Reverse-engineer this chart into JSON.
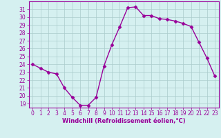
{
  "x": [
    0,
    1,
    2,
    3,
    4,
    5,
    6,
    7,
    8,
    9,
    10,
    11,
    12,
    13,
    14,
    15,
    16,
    17,
    18,
    19,
    20,
    21,
    22,
    23
  ],
  "y": [
    24.0,
    23.5,
    23.0,
    22.8,
    21.0,
    19.8,
    18.8,
    18.8,
    19.8,
    23.8,
    26.5,
    28.8,
    31.2,
    31.3,
    30.2,
    30.2,
    29.8,
    29.7,
    29.5,
    29.2,
    28.8,
    26.8,
    24.8,
    22.5
  ],
  "line_color": "#990099",
  "marker": "D",
  "marker_size": 2.5,
  "bg_color": "#d5f0f0",
  "grid_color": "#aacccc",
  "xlabel": "Windchill (Refroidissement éolien,°C)",
  "xlabel_color": "#990099",
  "tick_color": "#990099",
  "spine_color": "#990099",
  "ylim": [
    18.5,
    32.0
  ],
  "xlim": [
    -0.5,
    23.5
  ],
  "yticks": [
    19,
    20,
    21,
    22,
    23,
    24,
    25,
    26,
    27,
    28,
    29,
    30,
    31
  ],
  "xticks": [
    0,
    1,
    2,
    3,
    4,
    5,
    6,
    7,
    8,
    9,
    10,
    11,
    12,
    13,
    14,
    15,
    16,
    17,
    18,
    19,
    20,
    21,
    22,
    23
  ],
  "tick_labelsize": 5.5,
  "xlabel_fontsize": 6.0,
  "linewidth": 1.0
}
